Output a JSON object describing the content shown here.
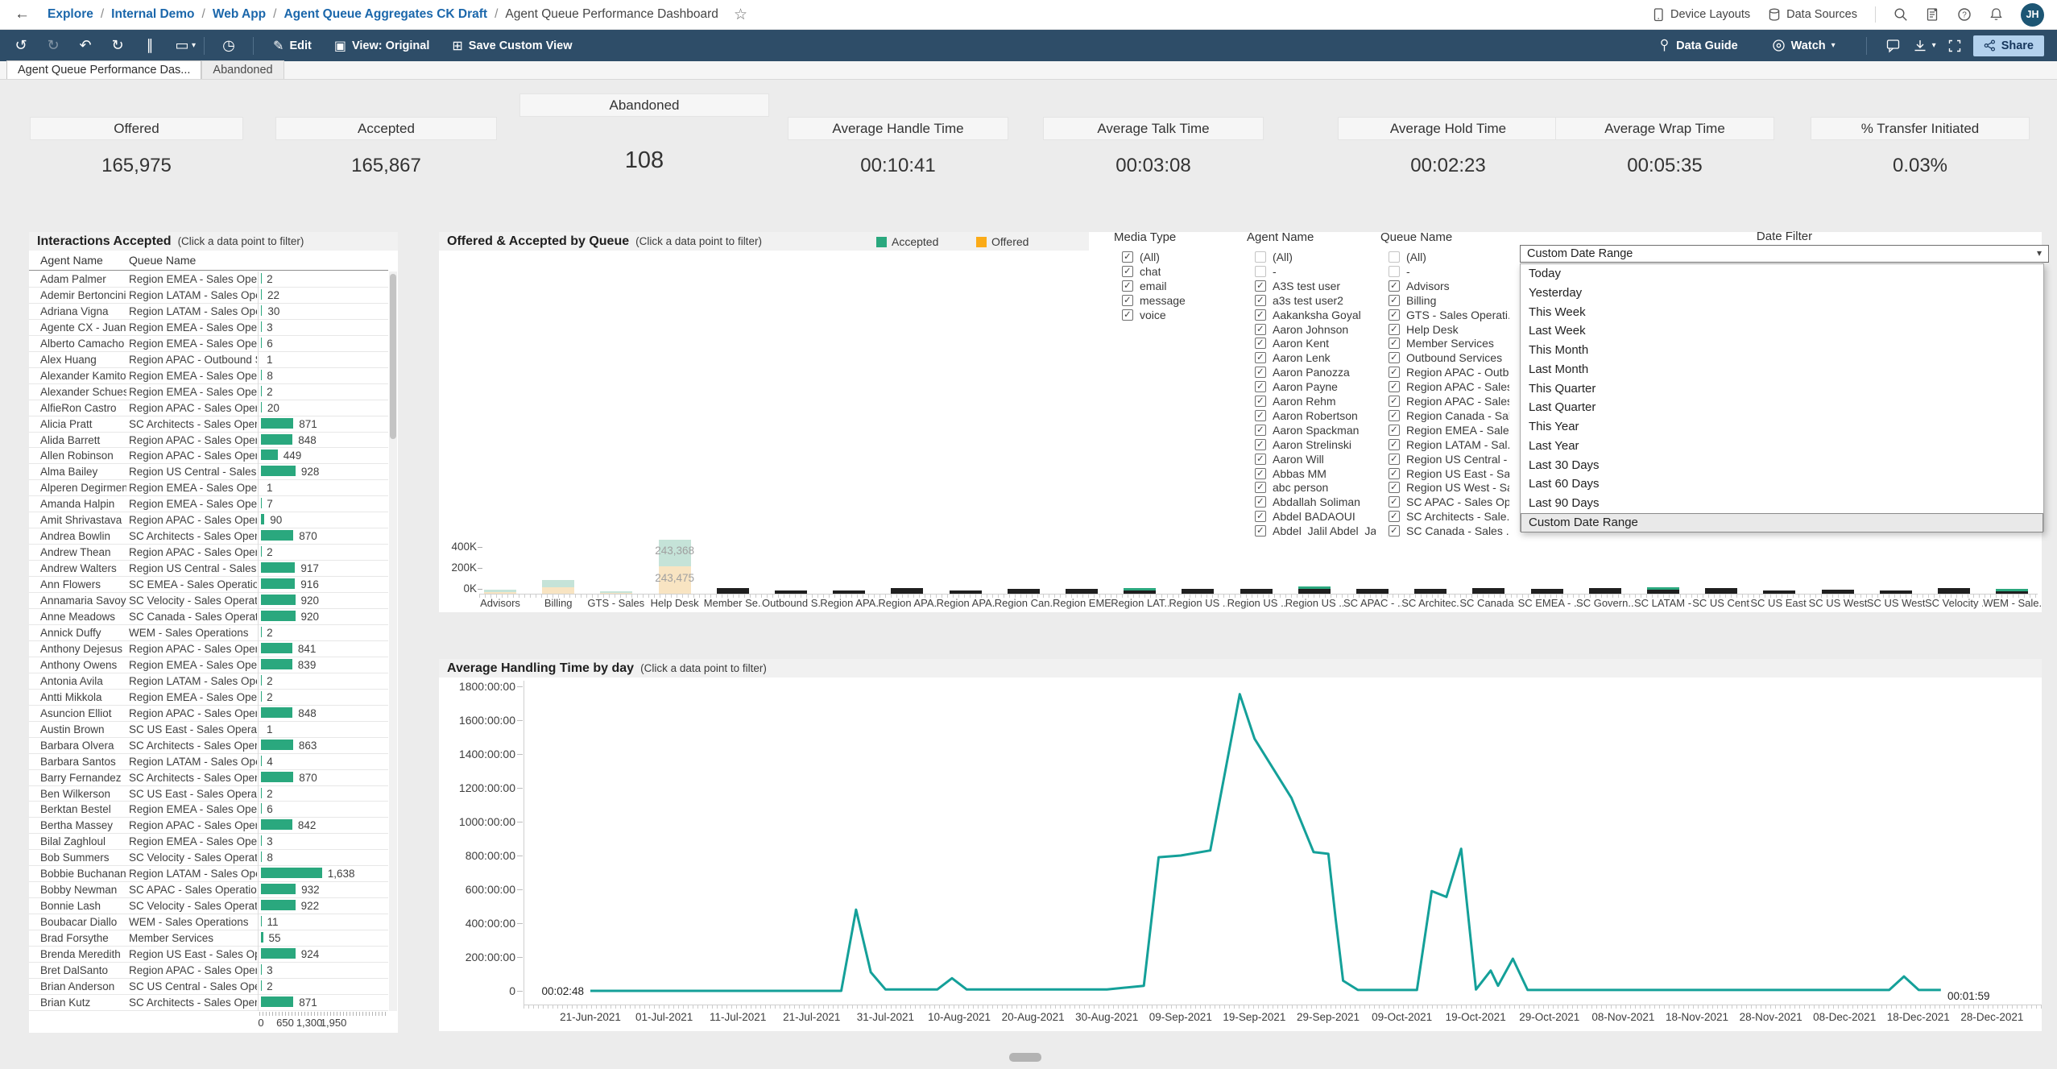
{
  "theme": {
    "accent_green": "#2aa87e",
    "accent_orange": "#fbab18",
    "faded_teal": "#c5e3d8",
    "faded_orange": "#f8e4c2",
    "bar_dark": "#1f1f1f",
    "line_teal": "#14a099",
    "toolbar_bg": "#2e4d68",
    "link_blue": "#1b67ab",
    "share_bg": "#b3d1ed",
    "share_text": "#16365c",
    "avatar_bg": "#1d5674"
  },
  "topnav": {
    "breadcrumbs": [
      {
        "label": "Explore"
      },
      {
        "label": "Internal Demo"
      },
      {
        "label": "Web App"
      },
      {
        "label": "Agent Queue Aggregates CK Draft"
      }
    ],
    "current_page": "Agent Queue Performance Dashboard",
    "device_layouts": "Device Layouts",
    "data_sources": "Data Sources",
    "avatar_initials": "JH"
  },
  "toolbar": {
    "edit": "Edit",
    "view": "View: Original",
    "save_custom_view": "Save Custom View",
    "data_guide": "Data Guide",
    "watch": "Watch",
    "share": "Share"
  },
  "tabs": [
    {
      "label": "Agent Queue Performance Das...",
      "active": true
    },
    {
      "label": "Abandoned",
      "active": false
    }
  ],
  "kpis": [
    {
      "label": "Offered",
      "value": "165,975",
      "raised": false
    },
    {
      "label": "Accepted",
      "value": "165,867",
      "raised": false
    },
    {
      "label": "Abandoned",
      "value": "108",
      "raised": true
    },
    {
      "label": "Average Handle Time",
      "value": "00:10:41",
      "raised": false
    },
    {
      "label": "Average Talk Time",
      "value": "00:03:08",
      "raised": false
    },
    {
      "label": "Average Hold Time",
      "value": "00:02:23",
      "raised": false
    },
    {
      "label": "Average Wrap Time",
      "value": "00:05:35",
      "raised": false
    },
    {
      "label": "% Transfer Initiated",
      "value": "0.03%",
      "raised": false
    }
  ],
  "filters": {
    "media_type": {
      "label": "Media Type",
      "items": [
        {
          "label": "(All)",
          "checked": true
        },
        {
          "label": "chat",
          "checked": true
        },
        {
          "label": "email",
          "checked": true
        },
        {
          "label": "message",
          "checked": true
        },
        {
          "label": "voice",
          "checked": true
        }
      ]
    },
    "agent_name": {
      "label": "Agent Name",
      "items": [
        {
          "label": "(All)",
          "checked": false
        },
        {
          "label": "-",
          "checked": false
        },
        {
          "label": "A3S test user",
          "checked": true
        },
        {
          "label": "a3s test user2",
          "checked": true
        },
        {
          "label": "Aakanksha Goyal",
          "checked": true
        },
        {
          "label": "Aaron Johnson",
          "checked": true
        },
        {
          "label": "Aaron Kent",
          "checked": true
        },
        {
          "label": "Aaron Lenk",
          "checked": true
        },
        {
          "label": "Aaron Panozza",
          "checked": true
        },
        {
          "label": "Aaron Payne",
          "checked": true
        },
        {
          "label": "Aaron Rehm",
          "checked": true
        },
        {
          "label": "Aaron Robertson",
          "checked": true
        },
        {
          "label": "Aaron Spackman",
          "checked": true
        },
        {
          "label": "Aaron Strelinski",
          "checked": true
        },
        {
          "label": "Aaron Will",
          "checked": true
        },
        {
          "label": "Abbas MM",
          "checked": true
        },
        {
          "label": "abc person",
          "checked": true
        },
        {
          "label": "Abdallah Soliman",
          "checked": true
        },
        {
          "label": "Abdel BADAOUI",
          "checked": true
        },
        {
          "label": "Abdel_Jalil Abdel_Ja",
          "checked": true
        }
      ]
    },
    "queue_name": {
      "label": "Queue Name",
      "items": [
        {
          "label": "(All)",
          "checked": false
        },
        {
          "label": "-",
          "checked": false
        },
        {
          "label": "Advisors",
          "checked": true
        },
        {
          "label": "Billing",
          "checked": true
        },
        {
          "label": "GTS - Sales Operati...",
          "checked": true
        },
        {
          "label": "Help Desk",
          "checked": true
        },
        {
          "label": "Member Services",
          "checked": true
        },
        {
          "label": "Outbound Services",
          "checked": true
        },
        {
          "label": "Region APAC - Outb...",
          "checked": true
        },
        {
          "label": "Region APAC - Sales...",
          "checked": true
        },
        {
          "label": "Region APAC - Sales...",
          "checked": true
        },
        {
          "label": "Region Canada - Sal...",
          "checked": true
        },
        {
          "label": "Region EMEA - Sale...",
          "checked": true
        },
        {
          "label": "Region LATAM - Sal...",
          "checked": true
        },
        {
          "label": "Region US Central - ...",
          "checked": true
        },
        {
          "label": "Region US East - Sal...",
          "checked": true
        },
        {
          "label": "Region US West - Sa...",
          "checked": true
        },
        {
          "label": "SC APAC - Sales Op...",
          "checked": true
        },
        {
          "label": "SC Architects - Sale...",
          "checked": true
        },
        {
          "label": "SC Canada - Sales ...",
          "checked": true
        }
      ]
    }
  },
  "date_filter": {
    "label": "Date Filter",
    "selected": "Custom Date Range",
    "highlighted": "Custom Date Range",
    "options": [
      "Today",
      "Yesterday",
      "This Week",
      "Last Week",
      "This Month",
      "Last Month",
      "This Quarter",
      "Last Quarter",
      "This Year",
      "Last Year",
      "Last 30 Days",
      "Last 60 Days",
      "Last 90 Days",
      "Custom Date Range"
    ]
  },
  "chart_data": [
    {
      "id": "interactions-accepted",
      "type": "bar",
      "orientation": "horizontal",
      "title": "Interactions Accepted",
      "hint": "(Click a data point to filter)",
      "col_agent": "Agent Name",
      "col_queue": "Queue Name",
      "axis_ticks": [
        0,
        650,
        1300,
        1950
      ],
      "xlim": [
        0,
        1950
      ],
      "rows": [
        [
          "Adam Palmer",
          "Region EMEA - Sales Operatio..",
          2
        ],
        [
          "Ademir Bertoncini",
          "Region LATAM - Sales Operati..",
          22
        ],
        [
          "Adriana Vigna",
          "Region LATAM - Sales Operati..",
          30
        ],
        [
          "Agente CX - Juan..",
          "Region EMEA - Sales Operatio..",
          3
        ],
        [
          "Alberto Camacho",
          "Region EMEA - Sales Operatio..",
          6
        ],
        [
          "Alex Huang",
          "Region APAC - Outbound Sales",
          1
        ],
        [
          "Alexander Kamitov",
          "Region EMEA - Sales Operatio..",
          8
        ],
        [
          "Alexander Schues..",
          "Region EMEA - Sales Operatio..",
          2
        ],
        [
          "AlfieRon Castro",
          "Region APAC - Sales Operatio..",
          20
        ],
        [
          "Alicia Pratt",
          "SC Architects - Sales Operatio..",
          871
        ],
        [
          "Alida Barrett",
          "Region APAC - Sales Operatio..",
          848
        ],
        [
          "Allen Robinson",
          "Region APAC - Sales Operatio..",
          449
        ],
        [
          "Alma Bailey",
          "Region US Central - Sales Ope..",
          928
        ],
        [
          "Alperen Degirmenci",
          "Region EMEA - Sales Operatio..",
          1
        ],
        [
          "Amanda Halpin",
          "Region EMEA - Sales Operatio..",
          7
        ],
        [
          "Amit Shrivastava",
          "Region APAC - Sales Operatio..",
          90
        ],
        [
          "Andrea Bowlin",
          "SC Architects - Sales Operatio..",
          870
        ],
        [
          "Andrew Thean",
          "Region APAC - Sales Operatio..",
          2
        ],
        [
          "Andrew Walters",
          "Region US Central - Sales Ope..",
          917
        ],
        [
          "Ann Flowers",
          "SC EMEA - Sales Operations",
          916
        ],
        [
          "Annamaria Savoy",
          "SC Velocity - Sales Operations",
          920
        ],
        [
          "Anne Meadows",
          "SC Canada - Sales Operations",
          920
        ],
        [
          "Annick Duffy",
          "WEM - Sales Operations",
          2
        ],
        [
          "Anthony Dejesus",
          "Region APAC - Sales Operatio..",
          841
        ],
        [
          "Anthony Owens",
          "Region EMEA - Sales Operatio..",
          839
        ],
        [
          "Antonia Avila",
          "Region LATAM - Sales Operati..",
          2
        ],
        [
          "Antti Mikkola",
          "Region EMEA - Sales Operatio..",
          2
        ],
        [
          "Asuncion Elliot",
          "Region APAC - Sales Operatio..",
          848
        ],
        [
          "Austin Brown",
          "SC US East - Sales Operations",
          1
        ],
        [
          "Barbara Olvera",
          "SC Architects - Sales Operatio..",
          863
        ],
        [
          "Barbara Santos",
          "Region LATAM - Sales Operati..",
          4
        ],
        [
          "Barry Fernandez",
          "SC Architects - Sales Operatio..",
          870
        ],
        [
          "Ben Wilkerson",
          "SC US East - Sales Operations",
          2
        ],
        [
          "Berktan Bestel",
          "Region EMEA - Sales Operatio..",
          6
        ],
        [
          "Bertha Massey",
          "Region APAC - Sales Operatio..",
          842
        ],
        [
          "Bilal Zaghloul",
          "Region EMEA - Sales Operatio..",
          3
        ],
        [
          "Bob Summers",
          "SC Velocity - Sales Operations",
          8
        ],
        [
          "Bobbie Buchanan",
          "Region LATAM - Sales Operati..",
          1638
        ],
        [
          "Bobby Newman",
          "SC APAC - Sales Operations",
          932
        ],
        [
          "Bonnie Lash",
          "SC Velocity - Sales Operations",
          922
        ],
        [
          "Boubacar Diallo",
          "WEM - Sales Operations",
          11
        ],
        [
          "Brad Forsythe",
          "Member Services",
          55
        ],
        [
          "Brenda Meredith",
          "Region US East - Sales Operat..",
          924
        ],
        [
          "Bret DalSanto",
          "Region APAC - Sales Operatio..",
          3
        ],
        [
          "Brian Anderson",
          "SC US Central - Sales Operati..",
          2
        ],
        [
          "Brian Kutz",
          "SC Architects - Sales Operatio..",
          871
        ]
      ]
    },
    {
      "id": "offered-accepted-by-queue",
      "type": "bar",
      "stacked": true,
      "title": "Offered & Accepted by Queue",
      "hint": "(Click a data point to filter)",
      "legend": [
        {
          "label": "Accepted",
          "color": "#2aa87e"
        },
        {
          "label": "Offered",
          "color": "#fbab18"
        }
      ],
      "y_ticks": [
        "400K",
        "200K",
        "0K"
      ],
      "bar_value_labels": [
        "243,368",
        "243,475"
      ],
      "labeled_bar": "Help Desk",
      "bars": [
        {
          "label": "Advisors",
          "accepted_k": 18,
          "offered_k": 17,
          "style": "faded"
        },
        {
          "label": "Billing",
          "accepted_k": 62,
          "offered_k": 58,
          "style": "faded"
        },
        {
          "label": "GTS - Sales ..",
          "accepted_k": 10,
          "offered_k": 10,
          "style": "faded"
        },
        {
          "label": "Help Desk",
          "accepted_k": 243.368,
          "offered_k": 243.475,
          "style": "faded-labeled"
        },
        {
          "label": "Member Se..",
          "accepted_k": 24,
          "offered_k": 24,
          "style": "dark"
        },
        {
          "label": "Outbound S..",
          "accepted_k": 14,
          "offered_k": 14,
          "style": "dark"
        },
        {
          "label": "Region APA..",
          "accepted_k": 14,
          "offered_k": 14,
          "style": "dark"
        },
        {
          "label": "Region APA..",
          "accepted_k": 24,
          "offered_k": 24,
          "style": "dark"
        },
        {
          "label": "Region APA..",
          "accepted_k": 14,
          "offered_k": 14,
          "style": "dark"
        },
        {
          "label": "Region Can..",
          "accepted_k": 21,
          "offered_k": 20,
          "style": "dark"
        },
        {
          "label": "Region EME..",
          "accepted_k": 21,
          "offered_k": 20,
          "style": "dark"
        },
        {
          "label": "Region LAT..",
          "accepted_k": 24,
          "offered_k": 24,
          "style": "dark-green"
        },
        {
          "label": "Region US ..",
          "accepted_k": 21,
          "offered_k": 20,
          "style": "dark"
        },
        {
          "label": "Region US ..",
          "accepted_k": 21,
          "offered_k": 20,
          "style": "dark"
        },
        {
          "label": "Region US ..",
          "accepted_k": 35,
          "offered_k": 34,
          "style": "dark-green"
        },
        {
          "label": "SC APAC - ..",
          "accepted_k": 21,
          "offered_k": 20,
          "style": "dark"
        },
        {
          "label": "SC Architec..",
          "accepted_k": 21,
          "offered_k": 20,
          "style": "dark"
        },
        {
          "label": "SC Canada ..",
          "accepted_k": 24,
          "offered_k": 24,
          "style": "dark"
        },
        {
          "label": "SC EMEA - ..",
          "accepted_k": 21,
          "offered_k": 20,
          "style": "dark"
        },
        {
          "label": "SC Govern..",
          "accepted_k": 24,
          "offered_k": 24,
          "style": "dark"
        },
        {
          "label": "SC LATAM -..",
          "accepted_k": 28,
          "offered_k": 27,
          "style": "dark-green"
        },
        {
          "label": "SC US Cent..",
          "accepted_k": 24,
          "offered_k": 24,
          "style": "dark"
        },
        {
          "label": "SC US East ..",
          "accepted_k": 14,
          "offered_k": 14,
          "style": "dark"
        },
        {
          "label": "SC US West..",
          "accepted_k": 17,
          "offered_k": 17,
          "style": "dark"
        },
        {
          "label": "SC US West..",
          "accepted_k": 14,
          "offered_k": 14,
          "style": "dark"
        },
        {
          "label": "SC Velocity ..",
          "accepted_k": 24,
          "offered_k": 24,
          "style": "dark"
        },
        {
          "label": "WEM - Sale..",
          "accepted_k": 21,
          "offered_k": 20,
          "style": "dark-green"
        }
      ]
    },
    {
      "id": "avg-handling-time-by-day",
      "type": "line",
      "title": "Average Handling Time by day",
      "hint": "(Click a data point to filter)",
      "ylim_hours": [
        0,
        1800
      ],
      "y_ticks": [
        "1800:00:00",
        "1600:00:00",
        "1400:00:00",
        "1200:00:00",
        "1000:00:00",
        "800:00:00",
        "600:00:00",
        "400:00:00",
        "200:00:00",
        "0"
      ],
      "x_ticks": [
        "21-Jun-2021",
        "01-Jul-2021",
        "11-Jul-2021",
        "21-Jul-2021",
        "31-Jul-2021",
        "10-Aug-2021",
        "20-Aug-2021",
        "30-Aug-2021",
        "09-Sep-2021",
        "19-Sep-2021",
        "29-Sep-2021",
        "09-Oct-2021",
        "19-Oct-2021",
        "29-Oct-2021",
        "08-Nov-2021",
        "18-Nov-2021",
        "28-Nov-2021",
        "08-Dec-2021",
        "18-Dec-2021",
        "28-Dec-2021"
      ],
      "start_label": "00:02:48",
      "end_label": "00:01:59",
      "points_day_hours": [
        [
          0,
          0.05
        ],
        [
          10,
          0.05
        ],
        [
          20,
          0.05
        ],
        [
          30,
          0.05
        ],
        [
          34,
          0.05
        ],
        [
          36,
          480
        ],
        [
          38,
          110
        ],
        [
          40,
          8
        ],
        [
          47,
          8
        ],
        [
          49,
          75
        ],
        [
          51,
          8
        ],
        [
          60,
          8
        ],
        [
          70,
          8
        ],
        [
          75,
          30
        ],
        [
          77,
          790
        ],
        [
          80,
          800
        ],
        [
          84,
          830
        ],
        [
          88,
          1754
        ],
        [
          90,
          1490
        ],
        [
          95,
          1140
        ],
        [
          98,
          820
        ],
        [
          100,
          810
        ],
        [
          101,
          420
        ],
        [
          102,
          60
        ],
        [
          104,
          5
        ],
        [
          112,
          5
        ],
        [
          114,
          590
        ],
        [
          116,
          555
        ],
        [
          118,
          840
        ],
        [
          120,
          8
        ],
        [
          122,
          120
        ],
        [
          123,
          30
        ],
        [
          125,
          190
        ],
        [
          127,
          5
        ],
        [
          140,
          5
        ],
        [
          155,
          5
        ],
        [
          170,
          5
        ],
        [
          176,
          5
        ],
        [
          178,
          85
        ],
        [
          180,
          5
        ],
        [
          183,
          5
        ]
      ]
    }
  ]
}
